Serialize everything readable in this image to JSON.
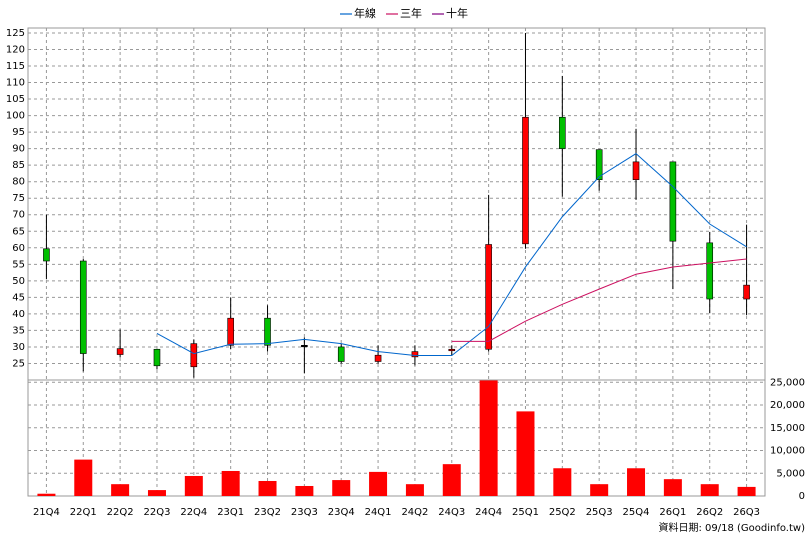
{
  "chart_data": [
    {
      "type": "candlestick",
      "up_color": "#ff0000",
      "down_color": "#00c000",
      "open": [
        59.7,
        56,
        27.7,
        29.3,
        24,
        30.5,
        38.7,
        30.5,
        30,
        25.6,
        27,
        29,
        29.3,
        61.2,
        99.5,
        89.7,
        80.6,
        86,
        61.5,
        44.5
      ],
      "high": [
        70,
        56.6,
        35.3,
        29.3,
        32.3,
        45,
        42.6,
        32.9,
        31,
        30.5,
        30.5,
        30.5,
        76,
        125,
        112,
        89.7,
        96,
        86,
        64.8,
        67
      ],
      "low": [
        50.5,
        22.6,
        26.8,
        23.2,
        20.7,
        29.3,
        28.6,
        22,
        25,
        25,
        24.4,
        27.4,
        28.6,
        59.7,
        75.5,
        77.3,
        74.5,
        47.5,
        40.2,
        39.6
      ],
      "close": [
        56,
        28,
        29.5,
        24.3,
        31,
        38.7,
        30.5,
        30.5,
        25.6,
        27.5,
        28.6,
        29.3,
        61,
        99.5,
        90,
        80.6,
        86,
        62,
        44.5,
        48.7
      ],
      "series": [
        {
          "name": "年線",
          "color": "#0066cc",
          "values": [
            null,
            null,
            null,
            34.1,
            28,
            30.8,
            31,
            32.3,
            31,
            28.6,
            27.4,
            27.4,
            36.2,
            54.2,
            69.4,
            81.5,
            88.5,
            78.5,
            67.2,
            60.3
          ]
        },
        {
          "name": "三年",
          "color": "#cc1060",
          "values": [
            null,
            null,
            null,
            null,
            null,
            null,
            null,
            null,
            null,
            null,
            null,
            31.7,
            31.7,
            37.8,
            42.9,
            47.5,
            52,
            54.2,
            55.4,
            56.6
          ]
        },
        {
          "name": "十年",
          "color": "#800080",
          "values": [
            null,
            null,
            null,
            null,
            null,
            null,
            null,
            null,
            null,
            null,
            null,
            null,
            null,
            null,
            null,
            null,
            null,
            null,
            null,
            null
          ]
        }
      ],
      "ylim": [
        20,
        126.5
      ],
      "yticks": [
        25,
        30,
        35,
        40,
        45,
        50,
        55,
        60,
        65,
        70,
        75,
        80,
        85,
        90,
        95,
        100,
        105,
        110,
        115,
        120,
        125
      ],
      "grid": true
    },
    {
      "type": "bar",
      "categories": [
        "21Q4",
        "22Q1",
        "22Q2",
        "22Q3",
        "22Q4",
        "23Q1",
        "23Q2",
        "23Q3",
        "23Q4",
        "24Q1",
        "24Q2",
        "24Q3",
        "24Q4",
        "25Q1",
        "25Q2",
        "25Q3",
        "25Q4",
        "26Q1",
        "26Q2",
        "26Q3"
      ],
      "values": [
        500,
        8000,
        2600,
        1300,
        4400,
        5500,
        3300,
        2200,
        3500,
        5300,
        2600,
        7000,
        25400,
        18600,
        6100,
        2600,
        6100,
        3700,
        2600,
        2000
      ],
      "color": "#ff0000",
      "ylim": [
        0,
        25500
      ],
      "yticks": [
        0,
        {
          "value": 5000,
          "label": "5,000"
        },
        {
          "value": 10000,
          "label": "10,000"
        },
        {
          "value": 15000,
          "label": "15,000"
        },
        {
          "value": 20000,
          "label": "20,000"
        },
        {
          "value": 25000,
          "label": "25,000"
        }
      ],
      "grid": true,
      "annotation": "資料日期: 09/18 (Goodinfo.tw)"
    }
  ]
}
